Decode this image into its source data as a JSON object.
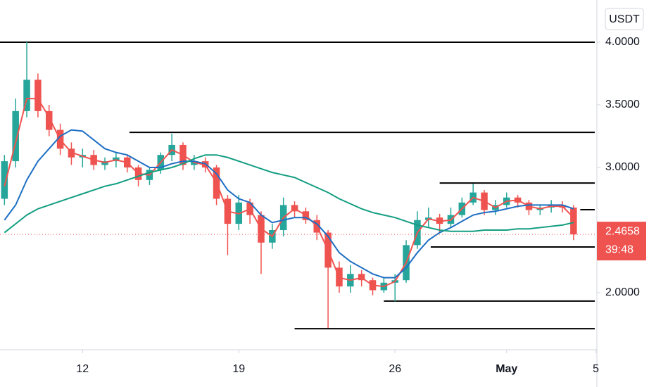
{
  "chart_data": {
    "type": "candlestick",
    "currency": "USDT",
    "x": [
      8.5,
      9,
      9.5,
      10,
      10.5,
      11,
      11.5,
      12,
      12.5,
      13,
      13.5,
      14,
      14.5,
      15,
      15.5,
      16,
      16.5,
      17,
      17.5,
      18,
      18.5,
      19,
      19.5,
      20,
      20.5,
      21,
      21.5,
      22,
      22.5,
      23,
      23.5,
      24,
      24.5,
      25,
      25.5,
      26,
      26.5,
      27,
      27.5,
      28,
      28.5,
      29,
      29.5,
      30,
      30.5,
      31,
      31.5,
      32,
      32.5,
      33,
      33.5,
      34
    ],
    "open": [
      2.75,
      3.05,
      3.45,
      3.7,
      3.45,
      3.3,
      3.15,
      3.08,
      3.1,
      3.02,
      3.05,
      3.08,
      3.0,
      2.9,
      2.98,
      3.1,
      3.18,
      3.02,
      3.05,
      3.0,
      2.75,
      2.55,
      2.72,
      2.62,
      2.4,
      2.5,
      2.7,
      2.65,
      2.58,
      2.48,
      2.2,
      2.05,
      2.15,
      2.1,
      2.02,
      2.08,
      2.1,
      2.38,
      2.58,
      2.6,
      2.55,
      2.62,
      2.72,
      2.8,
      2.66,
      2.7,
      2.76,
      2.72,
      2.66,
      2.68,
      2.7,
      2.68
    ],
    "high": [
      3.1,
      3.55,
      4.0,
      3.75,
      3.5,
      3.35,
      3.2,
      3.15,
      3.14,
      3.08,
      3.12,
      3.1,
      3.02,
      3.0,
      3.12,
      3.27,
      3.2,
      3.1,
      3.08,
      3.02,
      2.78,
      2.78,
      2.75,
      2.65,
      2.55,
      2.76,
      2.73,
      2.68,
      2.62,
      2.5,
      2.25,
      2.22,
      2.18,
      2.12,
      2.12,
      2.15,
      2.42,
      2.65,
      2.68,
      2.63,
      2.68,
      2.76,
      2.87,
      2.82,
      2.74,
      2.8,
      2.78,
      2.74,
      2.7,
      2.74,
      2.73,
      2.7
    ],
    "low": [
      2.7,
      3.0,
      3.4,
      3.4,
      3.25,
      3.1,
      3.02,
      3.0,
      2.98,
      2.98,
      3.0,
      2.96,
      2.85,
      2.86,
      2.95,
      3.05,
      2.98,
      2.98,
      2.96,
      2.7,
      2.3,
      2.5,
      2.55,
      2.15,
      2.35,
      2.45,
      2.6,
      2.55,
      2.42,
      1.72,
      2.0,
      2.0,
      2.05,
      1.98,
      2.0,
      1.93,
      2.08,
      2.35,
      2.52,
      2.48,
      2.52,
      2.6,
      2.7,
      2.62,
      2.62,
      2.68,
      2.68,
      2.62,
      2.62,
      2.64,
      2.64,
      2.42
    ],
    "close": [
      3.05,
      3.45,
      3.7,
      3.45,
      3.3,
      3.15,
      3.08,
      3.1,
      3.02,
      3.05,
      3.08,
      3.0,
      2.9,
      2.98,
      3.1,
      3.18,
      3.02,
      3.05,
      3.0,
      2.75,
      2.55,
      2.72,
      2.62,
      2.4,
      2.5,
      2.7,
      2.65,
      2.58,
      2.48,
      2.2,
      2.05,
      2.15,
      2.1,
      2.02,
      2.08,
      2.1,
      2.38,
      2.58,
      2.6,
      2.55,
      2.62,
      2.72,
      2.8,
      2.66,
      2.7,
      2.76,
      2.72,
      2.66,
      2.68,
      2.7,
      2.68,
      2.4658
    ],
    "up_color": "#26a69a",
    "down_color": "#ef5350",
    "series": [
      {
        "color": "#ef5350",
        "values": [
          2.85,
          3.2,
          3.55,
          3.55,
          3.4,
          3.22,
          3.12,
          3.09,
          3.06,
          3.04,
          3.06,
          3.04,
          2.95,
          2.94,
          3.04,
          3.14,
          3.1,
          3.04,
          3.02,
          2.88,
          2.65,
          2.63,
          2.67,
          2.51,
          2.45,
          2.6,
          2.67,
          2.62,
          2.53,
          2.34,
          2.12,
          2.1,
          2.12,
          2.06,
          2.05,
          2.09,
          2.24,
          2.48,
          2.59,
          2.57,
          2.58,
          2.67,
          2.76,
          2.73,
          2.68,
          2.73,
          2.74,
          2.69,
          2.67,
          2.69,
          2.69,
          2.6
        ]
      },
      {
        "color": "#1e6fc4",
        "values": [
          2.58,
          2.7,
          2.9,
          3.05,
          3.15,
          3.25,
          3.3,
          3.29,
          3.22,
          3.15,
          3.12,
          3.1,
          3.05,
          3.0,
          3.0,
          3.03,
          3.05,
          3.05,
          3.03,
          2.95,
          2.82,
          2.75,
          2.72,
          2.62,
          2.56,
          2.58,
          2.6,
          2.6,
          2.55,
          2.45,
          2.32,
          2.25,
          2.2,
          2.15,
          2.12,
          2.12,
          2.2,
          2.32,
          2.42,
          2.48,
          2.52,
          2.57,
          2.62,
          2.64,
          2.65,
          2.67,
          2.69,
          2.7,
          2.7,
          2.7,
          2.7,
          2.67
        ]
      },
      {
        "color": "#139e82",
        "values": [
          2.48,
          2.55,
          2.62,
          2.67,
          2.7,
          2.73,
          2.76,
          2.79,
          2.82,
          2.85,
          2.87,
          2.9,
          2.93,
          2.96,
          2.98,
          3.0,
          3.03,
          3.07,
          3.1,
          3.1,
          3.08,
          3.05,
          3.02,
          2.99,
          2.96,
          2.94,
          2.92,
          2.88,
          2.84,
          2.8,
          2.75,
          2.71,
          2.67,
          2.64,
          2.62,
          2.6,
          2.57,
          2.54,
          2.52,
          2.5,
          2.49,
          2.49,
          2.49,
          2.5,
          2.5,
          2.5,
          2.51,
          2.51,
          2.52,
          2.53,
          2.54,
          2.56
        ]
      }
    ],
    "levels": [
      {
        "y": 4.0,
        "x0": 8.3
      },
      {
        "y": 3.28,
        "x0": 14.1
      },
      {
        "y": 2.876,
        "x0": 28.0
      },
      {
        "y": 2.663,
        "x0": 34.3
      },
      {
        "y": 2.365,
        "x0": 27.6
      },
      {
        "y": 1.933,
        "x0": 25.5
      },
      {
        "y": 1.713,
        "x0": 21.5
      }
    ],
    "last_price": 2.4658,
    "countdown": "39:48",
    "xlim": [
      8.3,
      34.95
    ],
    "ylim": [
      1.545,
      4.337
    ],
    "xticks": [
      12,
      19,
      26,
      {
        "value": 31,
        "label": "May"
      },
      {
        "value": 35,
        "label": "5"
      }
    ],
    "yticks": [
      {
        "value": 2,
        "label": "2.0000"
      },
      {
        "value": 3,
        "label": "3.0000"
      },
      {
        "value": 3.5,
        "label": "3.5000"
      },
      {
        "value": 4,
        "label": "4.0000"
      }
    ]
  }
}
